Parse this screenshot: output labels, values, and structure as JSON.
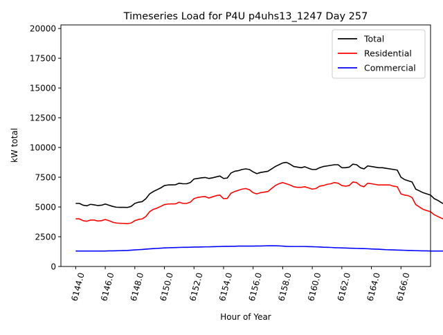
{
  "chart_data": {
    "type": "line",
    "title": "Timeseries Load for P4U p4uhs13_1247  Day 257",
    "xlabel": "Hour of Year",
    "ylabel": "kW total",
    "xlim": [
      6143.0,
      6168.0
    ],
    "ylim": [
      0,
      20300
    ],
    "x_ticks": [
      6144,
      6146,
      6148,
      6150,
      6152,
      6154,
      6156,
      6158,
      6160,
      6162,
      6164,
      6166
    ],
    "x_tick_labels": [
      "6144.0",
      "6146.0",
      "6148.0",
      "6150.0",
      "6152.0",
      "6154.0",
      "6156.0",
      "6158.0",
      "6160.0",
      "6162.0",
      "6164.0",
      "6166.0"
    ],
    "y_ticks": [
      0,
      2500,
      5000,
      7500,
      10000,
      12500,
      15000,
      17500,
      20000
    ],
    "y_tick_labels": [
      "0",
      "2500",
      "5000",
      "7500",
      "10000",
      "12500",
      "15000",
      "17500",
      "20000"
    ],
    "legend_position": "top-right",
    "x_start": 6144.0,
    "x_step": 0.25,
    "series": [
      {
        "name": "Total",
        "color": "#000000",
        "values": [
          5300,
          5300,
          5150,
          5100,
          5220,
          5180,
          5120,
          5150,
          5250,
          5150,
          5050,
          4980,
          4970,
          4970,
          4960,
          5050,
          5300,
          5400,
          5450,
          5700,
          6100,
          6300,
          6450,
          6600,
          6800,
          6850,
          6860,
          6870,
          7000,
          6950,
          6950,
          7050,
          7350,
          7400,
          7450,
          7480,
          7400,
          7450,
          7530,
          7600,
          7400,
          7430,
          7850,
          8000,
          8050,
          8150,
          8200,
          8150,
          7950,
          7800,
          7900,
          7950,
          8000,
          8200,
          8400,
          8550,
          8700,
          8750,
          8600,
          8400,
          8350,
          8300,
          8380,
          8250,
          8150,
          8150,
          8300,
          8400,
          8450,
          8500,
          8550,
          8550,
          8300,
          8300,
          8350,
          8600,
          8550,
          8300,
          8200,
          8450,
          8400,
          8350,
          8300,
          8300,
          8250,
          8200,
          8150,
          8100,
          7500,
          7300,
          7200,
          7100,
          6500,
          6350,
          6200,
          6100,
          6000,
          5700,
          5550,
          5350,
          5200
        ]
      },
      {
        "name": "Residential",
        "color": "#ff0000",
        "values": [
          4000,
          4000,
          3850,
          3800,
          3900,
          3900,
          3820,
          3850,
          3950,
          3850,
          3720,
          3650,
          3630,
          3620,
          3600,
          3650,
          3850,
          3950,
          4000,
          4200,
          4600,
          4800,
          4900,
          5050,
          5200,
          5250,
          5260,
          5260,
          5400,
          5300,
          5300,
          5400,
          5700,
          5800,
          5850,
          5880,
          5750,
          5850,
          5950,
          6000,
          5700,
          5720,
          6150,
          6300,
          6400,
          6500,
          6550,
          6450,
          6200,
          6100,
          6200,
          6250,
          6300,
          6550,
          6800,
          6950,
          7050,
          6950,
          6850,
          6700,
          6650,
          6650,
          6700,
          6600,
          6500,
          6550,
          6750,
          6800,
          6900,
          6950,
          7050,
          7000,
          6800,
          6750,
          6800,
          7100,
          7050,
          6800,
          6700,
          7000,
          6950,
          6900,
          6850,
          6850,
          6850,
          6850,
          6750,
          6700,
          6100,
          6000,
          5950,
          5800,
          5200,
          5000,
          4800,
          4700,
          4600,
          4350,
          4200,
          4050,
          3950
        ]
      },
      {
        "name": "Commercial",
        "color": "#0000ff",
        "values": [
          1300,
          1300,
          1300,
          1300,
          1300,
          1300,
          1300,
          1300,
          1300,
          1310,
          1310,
          1320,
          1330,
          1340,
          1350,
          1370,
          1390,
          1410,
          1430,
          1460,
          1480,
          1500,
          1520,
          1540,
          1560,
          1570,
          1580,
          1590,
          1600,
          1610,
          1610,
          1620,
          1630,
          1630,
          1640,
          1650,
          1650,
          1660,
          1670,
          1680,
          1690,
          1690,
          1700,
          1700,
          1710,
          1710,
          1710,
          1710,
          1710,
          1720,
          1720,
          1730,
          1740,
          1740,
          1740,
          1730,
          1710,
          1690,
          1680,
          1680,
          1680,
          1680,
          1680,
          1670,
          1660,
          1650,
          1640,
          1620,
          1610,
          1600,
          1580,
          1570,
          1560,
          1550,
          1540,
          1530,
          1520,
          1510,
          1500,
          1490,
          1470,
          1460,
          1450,
          1430,
          1410,
          1400,
          1390,
          1380,
          1370,
          1360,
          1350,
          1340,
          1330,
          1320,
          1310,
          1310,
          1300,
          1300,
          1300,
          1300,
          1300
        ]
      }
    ]
  }
}
